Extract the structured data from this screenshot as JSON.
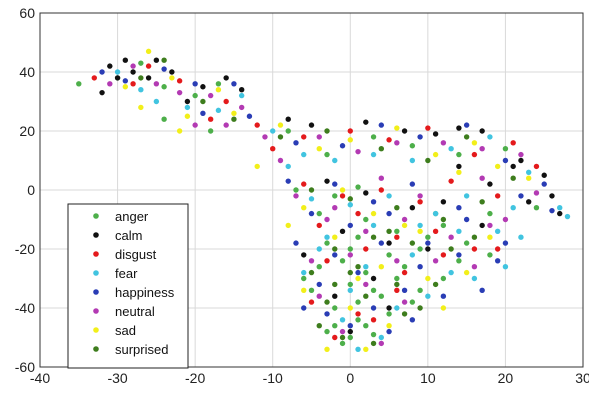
{
  "chart_data": {
    "type": "scatter",
    "xlim": [
      -40,
      30
    ],
    "ylim": [
      -60,
      60
    ],
    "x_ticks": [
      -40,
      -30,
      -20,
      -10,
      0,
      10,
      20,
      30
    ],
    "y_ticks": [
      -60,
      -40,
      -20,
      0,
      20,
      40,
      60
    ],
    "grid": true,
    "legend_position": "lower-left",
    "title": "",
    "xlabel": "",
    "ylabel": "",
    "series": [
      {
        "name": "anger",
        "color": "#4daf4a",
        "points": [
          [
            -35,
            36
          ],
          [
            -30,
            38
          ],
          [
            -27,
            43
          ],
          [
            -24,
            35
          ],
          [
            -20,
            32
          ],
          [
            -17,
            36
          ],
          [
            -24,
            24
          ],
          [
            -18,
            20
          ],
          [
            -8,
            20
          ],
          [
            -3,
            12
          ],
          [
            3,
            18
          ],
          [
            8,
            15
          ],
          [
            14,
            12
          ],
          [
            20,
            14
          ],
          [
            -7,
            0
          ],
          [
            -2,
            -2
          ],
          [
            1,
            1
          ],
          [
            -4,
            -8
          ],
          [
            2,
            -10
          ],
          [
            6,
            -14
          ],
          [
            12,
            -12
          ],
          [
            18,
            -8
          ],
          [
            24,
            -6
          ],
          [
            -3,
            -18
          ],
          [
            1,
            -16
          ],
          [
            5,
            -22
          ],
          [
            9,
            -20
          ],
          [
            14,
            -24
          ],
          [
            18,
            -22
          ],
          [
            -4,
            -26
          ],
          [
            2,
            -28
          ],
          [
            7,
            -26
          ],
          [
            12,
            -30
          ],
          [
            -5,
            -34
          ],
          [
            0,
            -32
          ],
          [
            4,
            -36
          ],
          [
            8,
            -38
          ],
          [
            -2,
            -40
          ],
          [
            1,
            -44
          ],
          [
            5,
            -42
          ],
          [
            -3,
            -48
          ],
          [
            0,
            -50
          ],
          [
            3,
            -49
          ],
          [
            -1,
            -52
          ],
          [
            2,
            -46
          ],
          [
            10,
            -16
          ],
          [
            15,
            -18
          ],
          [
            -6,
            -30
          ],
          [
            1,
            -38
          ],
          [
            6,
            -30
          ],
          [
            11,
            -8
          ],
          [
            -1,
            -24
          ],
          [
            3,
            -34
          ],
          [
            -2,
            -46
          ],
          [
            0,
            -20
          ],
          [
            9,
            -34
          ]
        ]
      },
      {
        "name": "calm",
        "color": "#111111",
        "points": [
          [
            -32,
            33
          ],
          [
            -31,
            42
          ],
          [
            -29,
            44
          ],
          [
            -28,
            40
          ],
          [
            -26,
            38
          ],
          [
            -23,
            40
          ],
          [
            -21,
            30
          ],
          [
            -19,
            35
          ],
          [
            -16,
            38
          ],
          [
            -14,
            34
          ],
          [
            -8,
            24
          ],
          [
            -5,
            22
          ],
          [
            2,
            23
          ],
          [
            7,
            20
          ],
          [
            11,
            19
          ],
          [
            14,
            21
          ],
          [
            17,
            20
          ],
          [
            22,
            10
          ],
          [
            25,
            5
          ],
          [
            26,
            -2
          ],
          [
            27,
            -8
          ],
          [
            14,
            8
          ],
          [
            18,
            2
          ],
          [
            12,
            -4
          ],
          [
            -3,
            3
          ],
          [
            2,
            -1
          ],
          [
            8,
            -6
          ],
          [
            -1,
            -14
          ],
          [
            5,
            -18
          ],
          [
            10,
            -20
          ],
          [
            -6,
            -22
          ],
          [
            3,
            -30
          ],
          [
            -2,
            -36
          ],
          [
            5,
            -40
          ],
          [
            0,
            -48
          ],
          [
            17,
            -12
          ],
          [
            21,
            8
          ],
          [
            23,
            -4
          ],
          [
            -25,
            44
          ],
          [
            -30,
            38
          ]
        ]
      },
      {
        "name": "disgust",
        "color": "#e41a1c",
        "points": [
          [
            -33,
            38
          ],
          [
            -28,
            36
          ],
          [
            -26,
            42
          ],
          [
            -22,
            37
          ],
          [
            -18,
            24
          ],
          [
            -16,
            30
          ],
          [
            -12,
            22
          ],
          [
            -6,
            18
          ],
          [
            0,
            20
          ],
          [
            5,
            17
          ],
          [
            10,
            21
          ],
          [
            16,
            12
          ],
          [
            21,
            16
          ],
          [
            24,
            8
          ],
          [
            -6,
            2
          ],
          [
            -1,
            -2
          ],
          [
            4,
            0
          ],
          [
            9,
            -4
          ],
          [
            13,
            3
          ],
          [
            19,
            -2
          ],
          [
            -4,
            -12
          ],
          [
            1,
            -8
          ],
          [
            6,
            -16
          ],
          [
            11,
            -14
          ],
          [
            16,
            -20
          ],
          [
            -3,
            -24
          ],
          [
            2,
            -20
          ],
          [
            7,
            -28
          ],
          [
            -5,
            -38
          ],
          [
            1,
            -42
          ],
          [
            6,
            -34
          ],
          [
            -2,
            -50
          ],
          [
            3,
            -44
          ],
          [
            19,
            -20
          ],
          [
            12,
            -22
          ],
          [
            -10,
            14
          ]
        ]
      },
      {
        "name": "fear",
        "color": "#41c4e0",
        "points": [
          [
            -30,
            40
          ],
          [
            -27,
            34
          ],
          [
            -25,
            30
          ],
          [
            -21,
            28
          ],
          [
            -17,
            27
          ],
          [
            -14,
            32
          ],
          [
            -10,
            20
          ],
          [
            -6,
            12
          ],
          [
            -2,
            10
          ],
          [
            3,
            12
          ],
          [
            8,
            10
          ],
          [
            13,
            14
          ],
          [
            18,
            18
          ],
          [
            23,
            6
          ],
          [
            27,
            -6
          ],
          [
            28,
            -9
          ],
          [
            -5,
            -3
          ],
          [
            0,
            -5
          ],
          [
            5,
            -2
          ],
          [
            11,
            -8
          ],
          [
            15,
            -2
          ],
          [
            21,
            -6
          ],
          [
            -3,
            -16
          ],
          [
            3,
            -12
          ],
          [
            9,
            -12
          ],
          [
            14,
            -14
          ],
          [
            19,
            -14
          ],
          [
            22,
            -16
          ],
          [
            -4,
            -20
          ],
          [
            2,
            -26
          ],
          [
            8,
            -22
          ],
          [
            13,
            -28
          ],
          [
            -6,
            -28
          ],
          [
            0,
            -34
          ],
          [
            6,
            -40
          ],
          [
            10,
            -36
          ],
          [
            -1,
            -44
          ],
          [
            4,
            -50
          ],
          [
            1,
            -54
          ],
          [
            16,
            -30
          ],
          [
            -8,
            8
          ],
          [
            20,
            -26
          ]
        ]
      },
      {
        "name": "happiness",
        "color": "#2a3db5",
        "points": [
          [
            -32,
            40
          ],
          [
            -29,
            37
          ],
          [
            -24,
            41
          ],
          [
            -20,
            36
          ],
          [
            -15,
            36
          ],
          [
            -19,
            26
          ],
          [
            -13,
            25
          ],
          [
            -7,
            16
          ],
          [
            -1,
            15
          ],
          [
            4,
            22
          ],
          [
            9,
            18
          ],
          [
            15,
            22
          ],
          [
            20,
            10
          ],
          [
            25,
            2
          ],
          [
            26,
            -7
          ],
          [
            22,
            -2
          ],
          [
            -8,
            3
          ],
          [
            -2,
            2
          ],
          [
            3,
            -4
          ],
          [
            8,
            2
          ],
          [
            14,
            -6
          ],
          [
            -5,
            -8
          ],
          [
            0,
            -12
          ],
          [
            5,
            -8
          ],
          [
            10,
            -18
          ],
          [
            15,
            -10
          ],
          [
            20,
            -18
          ],
          [
            -7,
            -18
          ],
          [
            -2,
            -22
          ],
          [
            4,
            -18
          ],
          [
            9,
            -26
          ],
          [
            14,
            -22
          ],
          [
            19,
            -24
          ],
          [
            -4,
            -32
          ],
          [
            1,
            -28
          ],
          [
            7,
            -34
          ],
          [
            12,
            -36
          ],
          [
            -3,
            -42
          ],
          [
            3,
            -40
          ],
          [
            8,
            -44
          ],
          [
            0,
            -46
          ],
          [
            5,
            -48
          ],
          [
            17,
            -34
          ],
          [
            -6,
            -40
          ]
        ]
      },
      {
        "name": "neutral",
        "color": "#b33ab3",
        "points": [
          [
            -31,
            36
          ],
          [
            -28,
            42
          ],
          [
            -25,
            36
          ],
          [
            -22,
            33
          ],
          [
            -20,
            22
          ],
          [
            -16,
            22
          ],
          [
            -14,
            28
          ],
          [
            -11,
            18
          ],
          [
            -4,
            18
          ],
          [
            1,
            13
          ],
          [
            6,
            16
          ],
          [
            12,
            16
          ],
          [
            17,
            14
          ],
          [
            22,
            12
          ],
          [
            24,
            -1
          ],
          [
            -7,
            -2
          ],
          [
            -2,
            -6
          ],
          [
            4,
            4
          ],
          [
            9,
            -2
          ],
          [
            17,
            4
          ],
          [
            -3,
            -10
          ],
          [
            2,
            -14
          ],
          [
            7,
            -10
          ],
          [
            13,
            -16
          ],
          [
            18,
            -12
          ],
          [
            -5,
            -24
          ],
          [
            0,
            -22
          ],
          [
            6,
            -24
          ],
          [
            11,
            -24
          ],
          [
            16,
            -26
          ],
          [
            -4,
            -36
          ],
          [
            2,
            -32
          ],
          [
            7,
            -38
          ],
          [
            -1,
            -48
          ],
          [
            4,
            -52
          ],
          [
            20,
            -10
          ],
          [
            -9,
            10
          ],
          [
            -18,
            32
          ]
        ]
      },
      {
        "name": "sad",
        "color": "#f2ef1a",
        "points": [
          [
            -29,
            35
          ],
          [
            -26,
            47
          ],
          [
            -23,
            38
          ],
          [
            -21,
            25
          ],
          [
            -17,
            34
          ],
          [
            -15,
            26
          ],
          [
            -22,
            20
          ],
          [
            -9,
            22
          ],
          [
            -4,
            14
          ],
          [
            0,
            17
          ],
          [
            6,
            21
          ],
          [
            11,
            12
          ],
          [
            16,
            16
          ],
          [
            19,
            8
          ],
          [
            23,
            4
          ],
          [
            -6,
            -6
          ],
          [
            -1,
            0
          ],
          [
            3,
            -8
          ],
          [
            9,
            -14
          ],
          [
            14,
            6
          ],
          [
            -2,
            -16
          ],
          [
            4,
            -26
          ],
          [
            10,
            -30
          ],
          [
            15,
            -28
          ],
          [
            -6,
            -34
          ],
          [
            0,
            -40
          ],
          [
            5,
            -46
          ],
          [
            2,
            -54
          ],
          [
            -3,
            -54
          ],
          [
            12,
            -40
          ],
          [
            18,
            -16
          ],
          [
            -8,
            -12
          ],
          [
            1,
            -30
          ],
          [
            -27,
            28
          ],
          [
            7,
            -12
          ],
          [
            -12,
            8
          ]
        ]
      },
      {
        "name": "surprised",
        "color": "#3e7d1d",
        "points": [
          [
            -27,
            38
          ],
          [
            -24,
            44
          ],
          [
            -19,
            30
          ],
          [
            -15,
            24
          ],
          [
            -9,
            18
          ],
          [
            -3,
            20
          ],
          [
            4,
            14
          ],
          [
            10,
            10
          ],
          [
            15,
            18
          ],
          [
            21,
            4
          ],
          [
            -5,
            0
          ],
          [
            0,
            -3
          ],
          [
            6,
            -6
          ],
          [
            12,
            -10
          ],
          [
            17,
            -4
          ],
          [
            -2,
            -20
          ],
          [
            3,
            -16
          ],
          [
            8,
            -18
          ],
          [
            13,
            -20
          ],
          [
            -5,
            -28
          ],
          [
            1,
            -26
          ],
          [
            6,
            -32
          ],
          [
            11,
            -32
          ],
          [
            -3,
            -38
          ],
          [
            2,
            -36
          ],
          [
            7,
            -42
          ],
          [
            -1,
            -50
          ],
          [
            3,
            -52
          ],
          [
            -4,
            -46
          ],
          [
            0,
            -28
          ],
          [
            5,
            -14
          ],
          [
            16,
            -16
          ],
          [
            -2,
            -32
          ],
          [
            9,
            -40
          ]
        ]
      }
    ]
  }
}
